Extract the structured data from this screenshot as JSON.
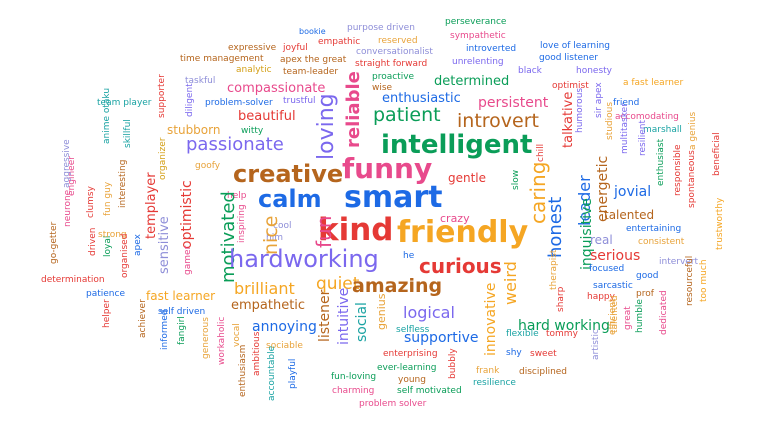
{
  "palette": {
    "orange": "#f5a623",
    "amber": "#e8a33a",
    "blue": "#1d6ae5",
    "purple": "#7b68ee",
    "green": "#0a9d58",
    "teal": "#1aa3a3",
    "red": "#e53935",
    "brown": "#b5651d",
    "pink": "#e84a8c",
    "rose": "#f06292",
    "lavender": "#8e8ed8",
    "gold": "#d4a017"
  },
  "words": [
    "perseverance",
    "sympathetic",
    "bookie",
    "purpose driven",
    "empathic",
    "reserved",
    "introverted",
    "love of learning",
    "expressive",
    "joyful",
    "conversationalist",
    "good listener",
    "time management",
    "apex the great",
    "straight forward",
    "unrelenting",
    "analytic",
    "team-leader",
    "black",
    "honesty",
    "proactive",
    "optimist",
    "a fast learner",
    "taskful",
    "supporter",
    "wise",
    "determined",
    "team player",
    "diligent",
    "problem-solver",
    "trustful",
    "enthusiastic",
    "friend",
    "compassionate",
    "persistent",
    "accomodating",
    "reliable",
    "beautiful",
    "patient",
    "introvert",
    "humorous",
    "sir apex",
    "anime otaku",
    "skillful",
    "witty",
    "marshall",
    "loving",
    "passionate",
    "talkative",
    "a genius",
    "stubborn",
    "intelligent",
    "studious",
    "goofy",
    "chill",
    "multitasker",
    "funny",
    "creative",
    "gentle",
    "resilient",
    "organizer",
    "jovial",
    "beneficial",
    "engineer",
    "optimistic",
    "energetic",
    "responsible",
    "aggressive",
    "enthusiast",
    "smart",
    "slow",
    "spontaneous",
    "interesting",
    "help",
    "calm",
    "caring",
    "leader",
    "honest",
    "talented",
    "templayer",
    "motivated",
    "fun guy",
    "clumsy",
    "trustworthy",
    "crazy",
    "entertaining",
    "cool",
    "friendly",
    "kind",
    "neurone",
    "inspiring",
    "him",
    "fun",
    "nice",
    "real",
    "consistent",
    "go-getter",
    "driven",
    "apex",
    "loyal",
    "strong",
    "sensitive",
    "hardworking",
    "serious",
    "curious",
    "he",
    "inquisitive",
    "focused",
    "good",
    "intervert",
    "organised",
    "gamer",
    "determination",
    "quiet",
    "amazing",
    "sarcastic",
    "brilliant",
    "fast learner",
    "weird",
    "patience",
    "therapist",
    "prof",
    "resourceful",
    "happy",
    "too much",
    "empathetic",
    "sharp",
    "logical",
    "self driven",
    "annoying",
    "efficient",
    "helper",
    "social",
    "great",
    "humble",
    "dedicated",
    "achiever",
    "genius",
    "hard working",
    "innovative",
    "intuitive",
    "selfless",
    "listener",
    "fangirl",
    "informed",
    "flexible",
    "tommy",
    "supportive",
    "generous",
    "vocal",
    "artistic",
    "workaholic",
    "enterprising",
    "shy",
    "sweet",
    "sociable",
    "enthusiasm",
    "ambitious",
    "bubbly",
    "talented",
    "frank",
    "ever-learning",
    "disciplined",
    "fun-loving",
    "resilience",
    "young",
    "accountable",
    "playful",
    "charming",
    "self motivated",
    "problem solver"
  ]
}
